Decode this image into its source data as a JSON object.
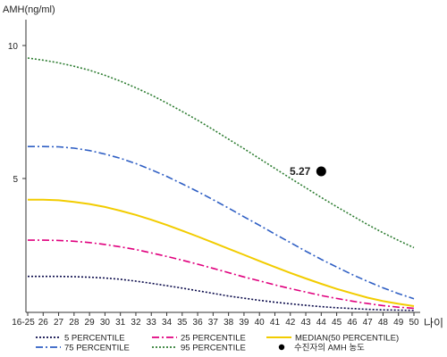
{
  "chart_data": {
    "type": "line",
    "ylabel": "AMH(ng/ml)",
    "xlabel": "나이",
    "yticks": [
      5,
      10
    ],
    "ylim": [
      0,
      11
    ],
    "categories": [
      "16-25",
      "26",
      "27",
      "28",
      "29",
      "30",
      "31",
      "32",
      "33",
      "34",
      "35",
      "36",
      "37",
      "38",
      "39",
      "40",
      "41",
      "42",
      "43",
      "44",
      "45",
      "46",
      "47",
      "48",
      "49",
      "50"
    ],
    "series": [
      {
        "name": "5 PERCENTILE",
        "color": "#0a0a4a",
        "dash": "2,2",
        "values": [
          1.32,
          1.32,
          1.32,
          1.31,
          1.29,
          1.26,
          1.21,
          1.14,
          1.06,
          0.97,
          0.88,
          0.78,
          0.68,
          0.58,
          0.5,
          0.42,
          0.35,
          0.29,
          0.23,
          0.18,
          0.14,
          0.11,
          0.08,
          0.06,
          0.05,
          0.04
        ]
      },
      {
        "name": "25 PERCENTILE",
        "color": "#e0007e",
        "dash": "8,3,2,3",
        "values": [
          2.68,
          2.68,
          2.67,
          2.64,
          2.59,
          2.52,
          2.43,
          2.33,
          2.2,
          2.07,
          1.93,
          1.78,
          1.62,
          1.46,
          1.3,
          1.15,
          1.0,
          0.86,
          0.73,
          0.6,
          0.49,
          0.39,
          0.3,
          0.22,
          0.16,
          0.12
        ]
      },
      {
        "name": "MEDIAN(50 PERCENTILE)",
        "color": "#f2cc00",
        "dash": "",
        "values": [
          4.2,
          4.2,
          4.18,
          4.12,
          4.04,
          3.93,
          3.79,
          3.63,
          3.45,
          3.25,
          3.04,
          2.82,
          2.59,
          2.36,
          2.13,
          1.9,
          1.67,
          1.45,
          1.24,
          1.04,
          0.85,
          0.68,
          0.52,
          0.39,
          0.29,
          0.2
        ]
      },
      {
        "name": "75 PERCENTILE",
        "color": "#2f5fc4",
        "dash": "8,3,2,3",
        "values": [
          6.2,
          6.2,
          6.19,
          6.14,
          6.05,
          5.92,
          5.76,
          5.56,
          5.33,
          5.08,
          4.8,
          4.51,
          4.2,
          3.89,
          3.56,
          3.24,
          2.91,
          2.59,
          2.27,
          1.96,
          1.67,
          1.39,
          1.13,
          0.89,
          0.67,
          0.48
        ]
      },
      {
        "name": "95 PERCENTILE",
        "color": "#2e7d32",
        "dash": "2,2",
        "values": [
          9.53,
          9.45,
          9.35,
          9.22,
          9.07,
          8.88,
          8.66,
          8.41,
          8.14,
          7.84,
          7.52,
          7.19,
          6.84,
          6.48,
          6.12,
          5.75,
          5.38,
          5.01,
          4.65,
          4.29,
          3.94,
          3.6,
          3.27,
          2.96,
          2.67,
          2.4
        ]
      }
    ],
    "marker": {
      "label": "5.27",
      "x": "44",
      "value": 5.27,
      "legend_label": "수진자의 AMH 농도"
    },
    "legend": [
      "5 PERCENTILE",
      "25 PERCENTILE",
      "MEDIAN(50 PERCENTILE)",
      "75 PERCENTILE",
      "95 PERCENTILE"
    ],
    "legend_position": "bottom",
    "grid": false
  }
}
